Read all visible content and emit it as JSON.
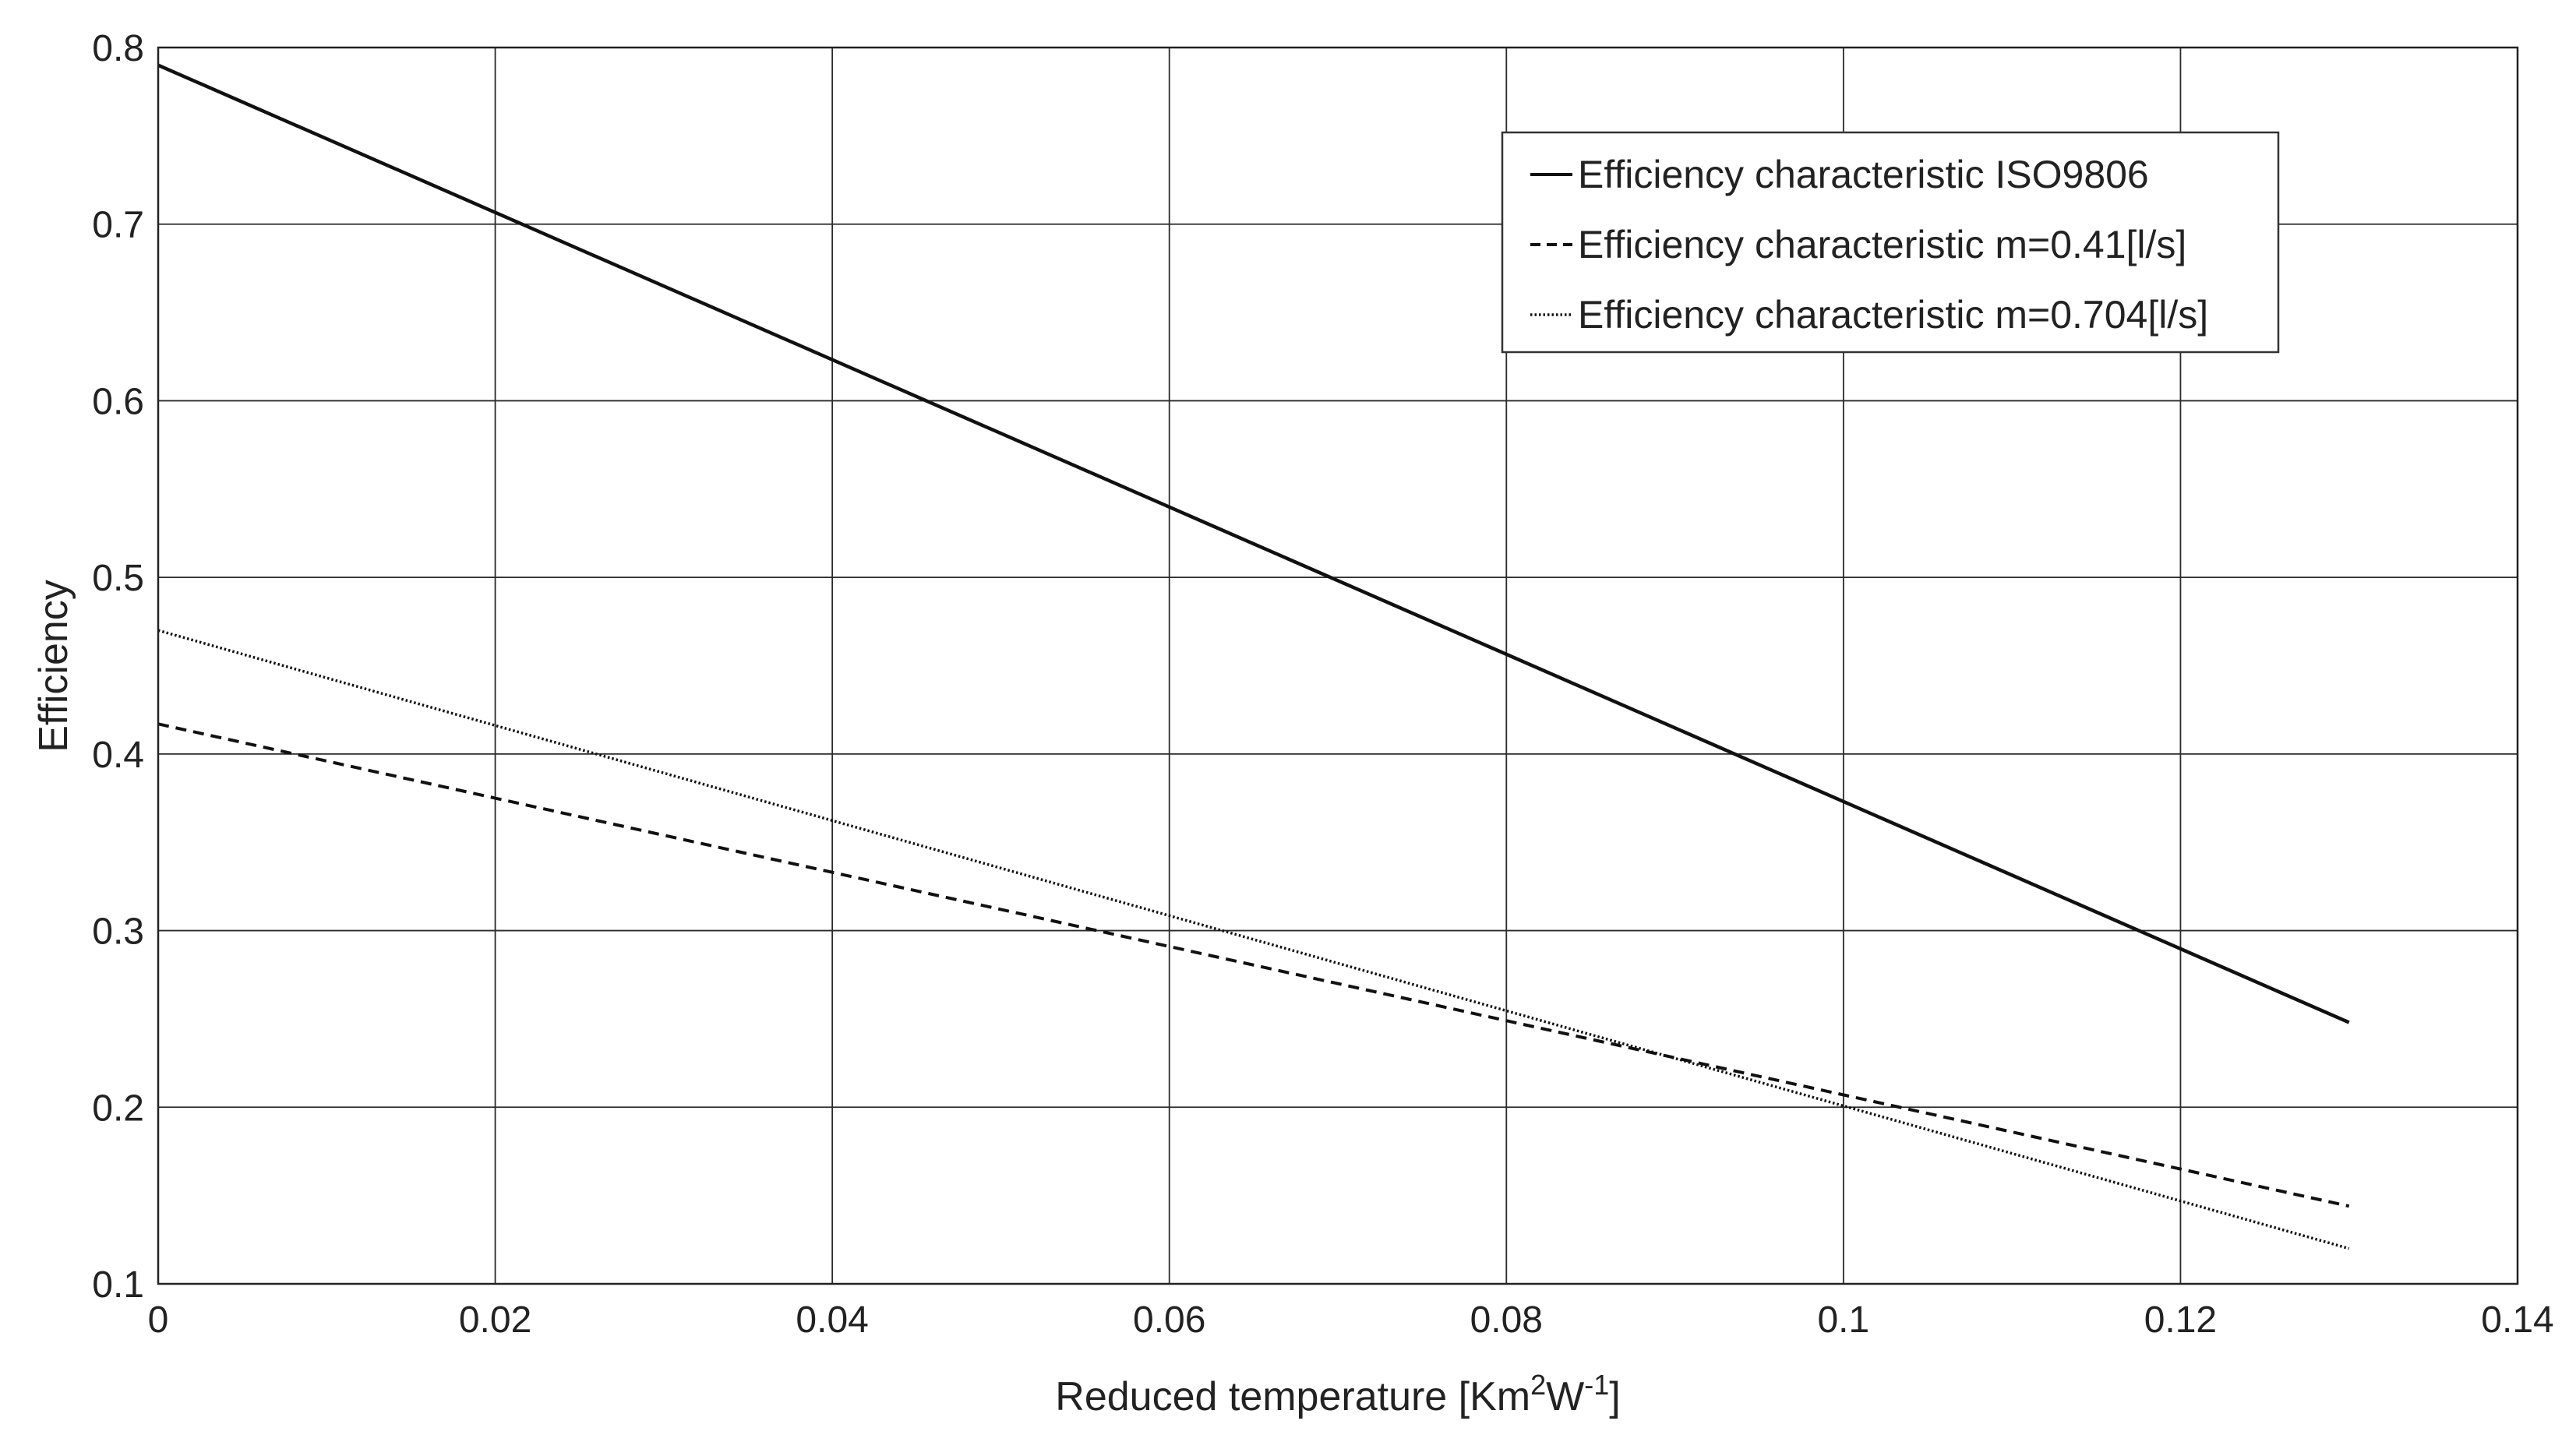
{
  "chart_data": {
    "type": "line",
    "title": "",
    "xlabel": {
      "main": "Reduced temperature [Km",
      "sup1": "2",
      "mid": "W",
      "sup2": "-1",
      "end": "]"
    },
    "ylabel": "Efficiency",
    "xlim": [
      0,
      0.14
    ],
    "ylim": [
      0.1,
      0.8
    ],
    "xticks": [
      0,
      0.02,
      0.04,
      0.06,
      0.08,
      0.1,
      0.12,
      0.14
    ],
    "xtick_labels": [
      "0",
      "0.02",
      "0.04",
      "0.06",
      "0.08",
      "0.1",
      "0.12",
      "0.14"
    ],
    "yticks": [
      0.1,
      0.2,
      0.3,
      0.4,
      0.5,
      0.6,
      0.7,
      0.8
    ],
    "ytick_labels": [
      "0.1",
      "0.2",
      "0.3",
      "0.4",
      "0.5",
      "0.6",
      "0.7",
      "0.8"
    ],
    "grid": true,
    "legend_position": "top-right",
    "series": [
      {
        "name": "Efficiency characteristic ISO9806",
        "style": "solid",
        "x": [
          0,
          0.13
        ],
        "y": [
          0.79,
          0.248
        ]
      },
      {
        "name": "Efficiency characteristic m=0.41[l/s]",
        "style": "dashed",
        "x": [
          0,
          0.13
        ],
        "y": [
          0.417,
          0.144
        ]
      },
      {
        "name": "Efficiency characteristic m=0.704[l/s]",
        "style": "dotted",
        "x": [
          0,
          0.13
        ],
        "y": [
          0.47,
          0.12
        ]
      }
    ],
    "colors": {
      "line": "#111111",
      "grid": "#2a2a2a",
      "axis": "#222222",
      "background": "#ffffff"
    }
  }
}
